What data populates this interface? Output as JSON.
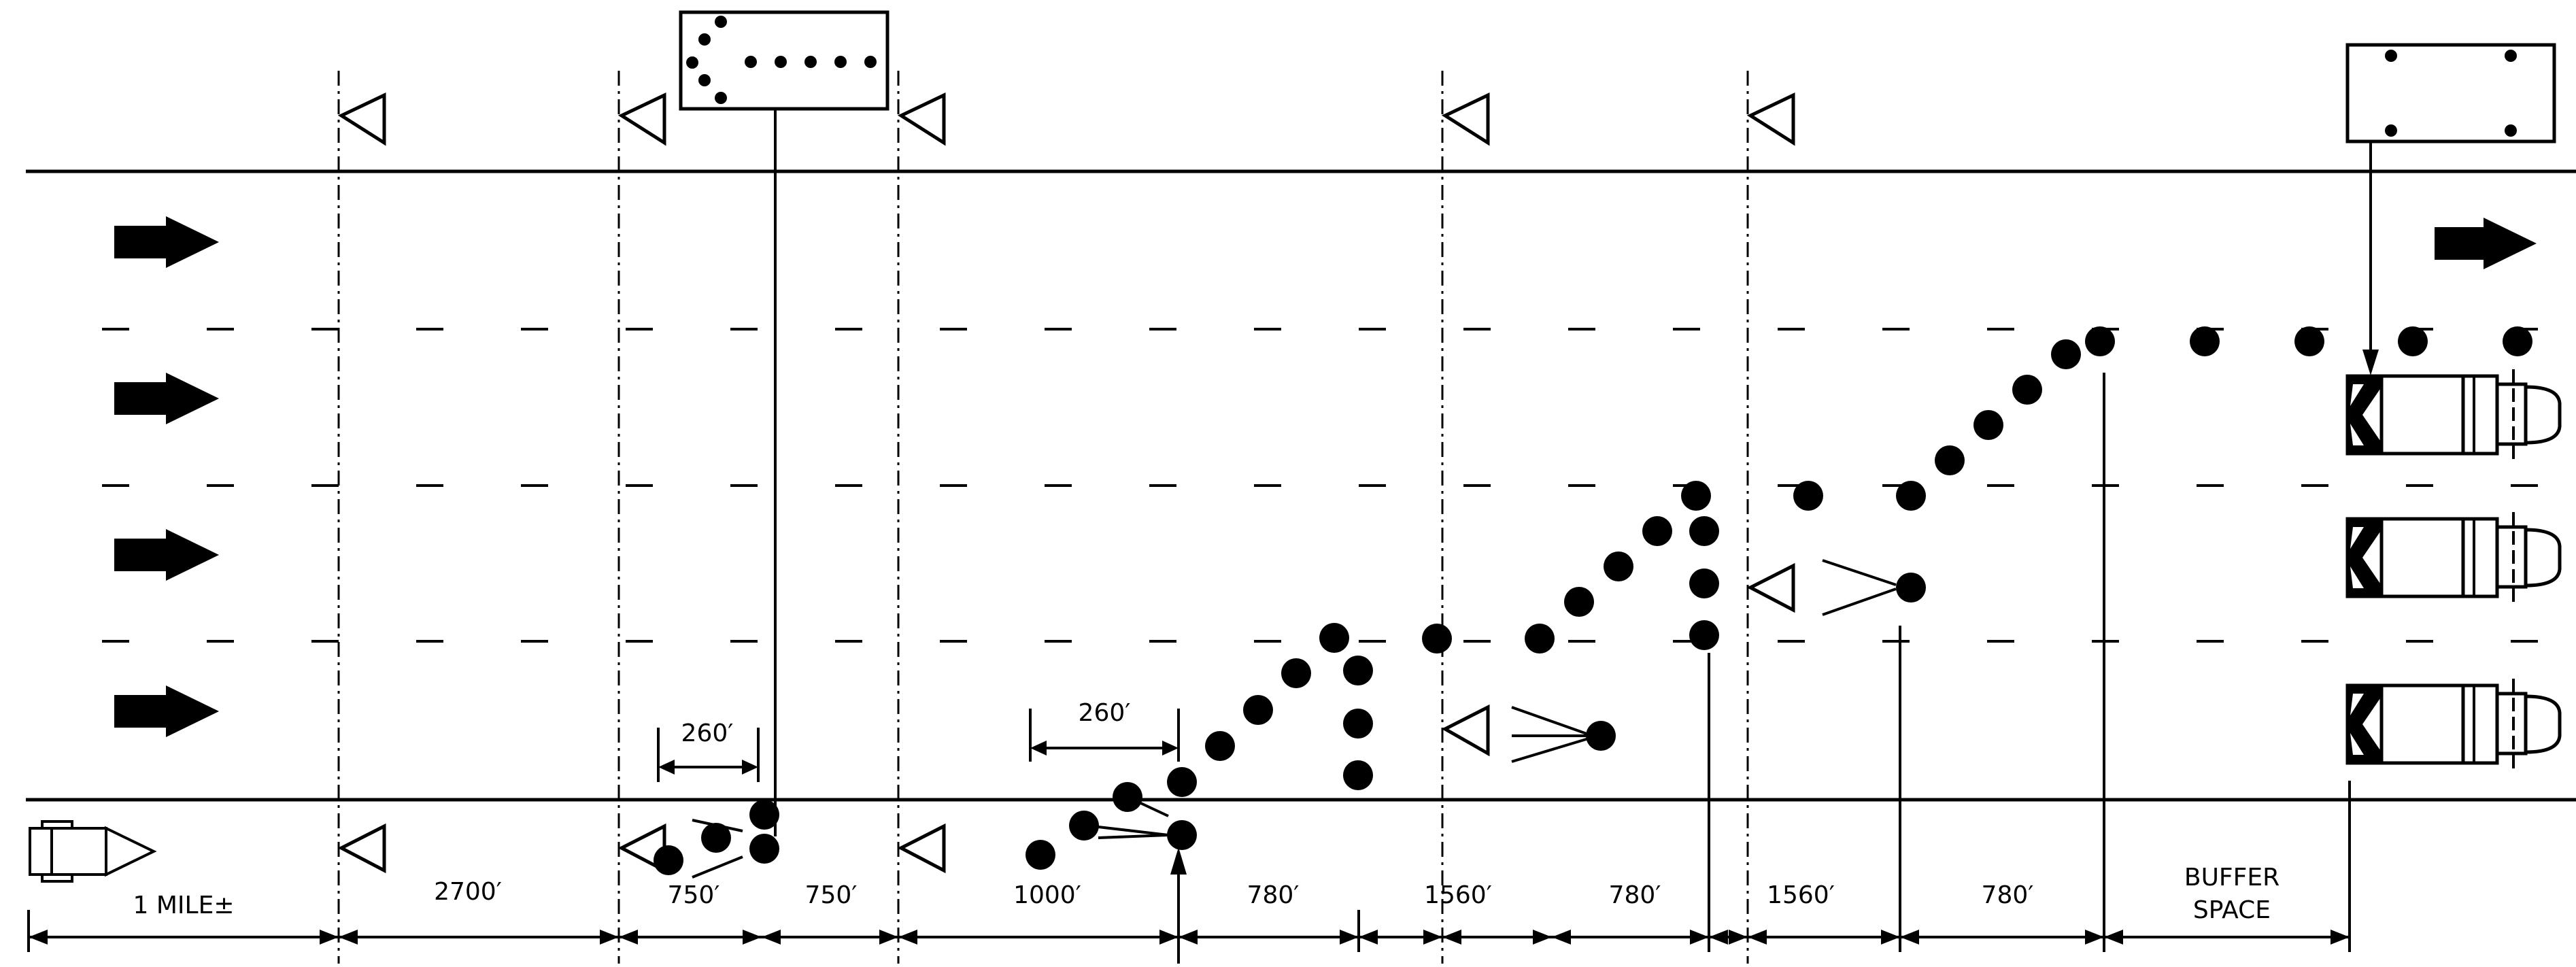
{
  "colors": {
    "ink": "#000000",
    "paper": "#ffffff"
  },
  "dimensions": {
    "taper_length": "260′",
    "taper_length_2": "260′",
    "segments": [
      "1 MILE±",
      "2700′",
      "750′",
      "750′",
      "1000′",
      "780′",
      "1560′",
      "780′",
      "1560′",
      "780′",
      "BUFFER",
      "SPACE"
    ]
  },
  "icons": {
    "lane_arrow": "right-arrow-icon",
    "sign": "left-triangle-sign-icon",
    "cone": "channelizing-device-icon",
    "arrow_board": "arrow-board-icon",
    "truck": "truck-mounted-attenuator-icon",
    "approach_vehicle": "approaching-vehicle-icon"
  }
}
